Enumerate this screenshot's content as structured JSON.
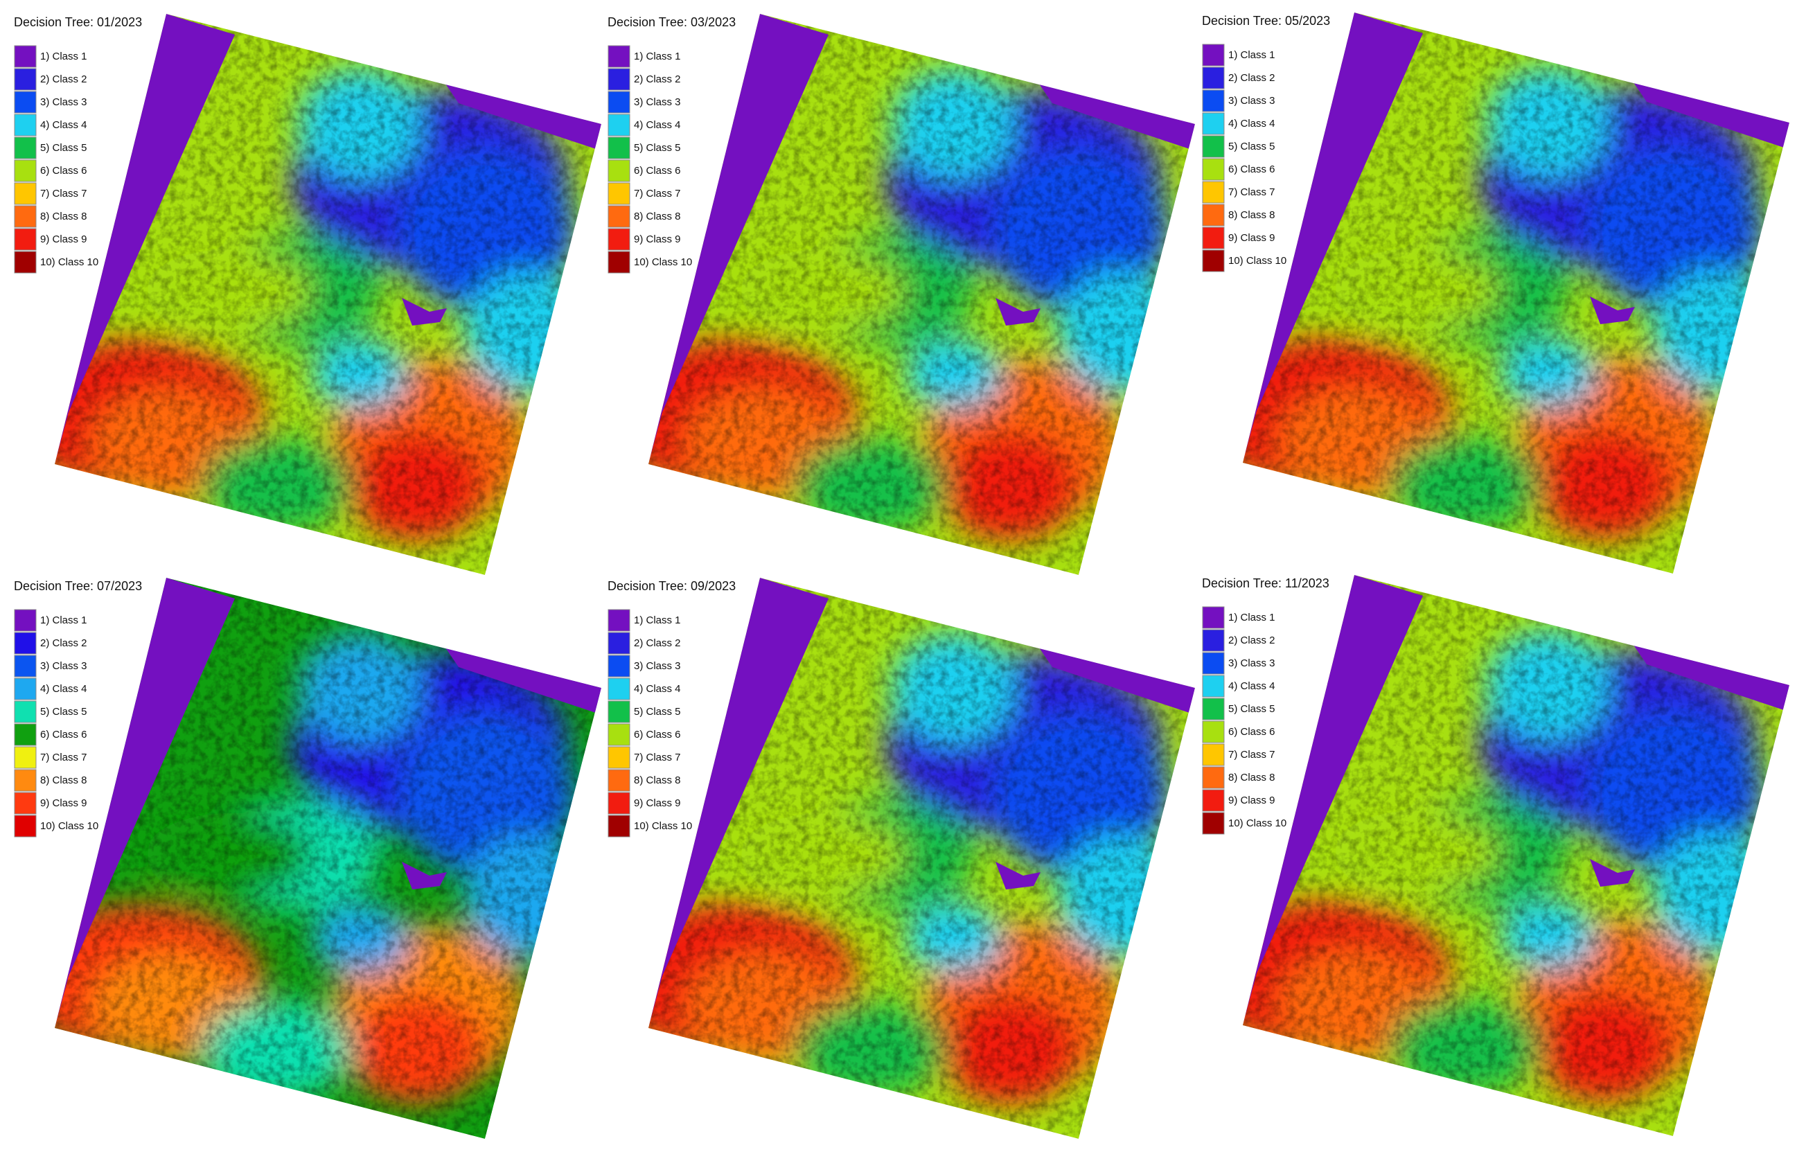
{
  "panels": [
    {
      "title": "Decision Tree: 01/2023",
      "legend": [
        {
          "label": "1) Class 1",
          "color": "#7410c0"
        },
        {
          "label": "2) Class 2",
          "color": "#2a1fe0"
        },
        {
          "label": "3) Class 3",
          "color": "#0b4cf2"
        },
        {
          "label": "4) Class 4",
          "color": "#1ed0f0"
        },
        {
          "label": "5) Class 5",
          "color": "#12c04a"
        },
        {
          "label": "6) Class 6",
          "color": "#a8e010"
        },
        {
          "label": "7) Class 7",
          "color": "#ffc600"
        },
        {
          "label": "8) Class 8",
          "color": "#ff6a10"
        },
        {
          "label": "9) Class 9",
          "color": "#f21c10"
        },
        {
          "label": "10) Class 10",
          "color": "#a00000"
        }
      ]
    },
    {
      "title": "Decision Tree: 03/2023",
      "legend": [
        {
          "label": "1) Class 1",
          "color": "#7410c0"
        },
        {
          "label": "2) Class 2",
          "color": "#2a1fe0"
        },
        {
          "label": "3) Class 3",
          "color": "#0b4cf2"
        },
        {
          "label": "4) Class 4",
          "color": "#1ed0f0"
        },
        {
          "label": "5) Class 5",
          "color": "#12c04a"
        },
        {
          "label": "6) Class 6",
          "color": "#a8e010"
        },
        {
          "label": "7) Class 7",
          "color": "#ffc600"
        },
        {
          "label": "8) Class 8",
          "color": "#ff6a10"
        },
        {
          "label": "9) Class 9",
          "color": "#f21c10"
        },
        {
          "label": "10) Class 10",
          "color": "#a00000"
        }
      ]
    },
    {
      "title": "Decision Tree: 05/2023",
      "legend": [
        {
          "label": "1) Class 1",
          "color": "#7410c0"
        },
        {
          "label": "2) Class 2",
          "color": "#2a1fe0"
        },
        {
          "label": "3) Class 3",
          "color": "#0b4cf2"
        },
        {
          "label": "4) Class 4",
          "color": "#1ed0f0"
        },
        {
          "label": "5) Class 5",
          "color": "#12c04a"
        },
        {
          "label": "6) Class 6",
          "color": "#a8e010"
        },
        {
          "label": "7) Class 7",
          "color": "#ffc600"
        },
        {
          "label": "8) Class 8",
          "color": "#ff6a10"
        },
        {
          "label": "9) Class 9",
          "color": "#f21c10"
        },
        {
          "label": "10) Class 10",
          "color": "#a00000"
        }
      ]
    },
    {
      "title": "Decision Tree: 07/2023",
      "legend": [
        {
          "label": "1) Class 1",
          "color": "#7410c0"
        },
        {
          "label": "2) Class 2",
          "color": "#2010e8"
        },
        {
          "label": "3) Class 3",
          "color": "#0b55f0"
        },
        {
          "label": "4) Class 4",
          "color": "#1ea8f0"
        },
        {
          "label": "5) Class 5",
          "color": "#10e0b0"
        },
        {
          "label": "6) Class 6",
          "color": "#10a010"
        },
        {
          "label": "7) Class 7",
          "color": "#f0f010"
        },
        {
          "label": "8) Class 8",
          "color": "#ff8a10"
        },
        {
          "label": "9) Class 9",
          "color": "#ff3a10"
        },
        {
          "label": "10) Class 10",
          "color": "#e00000"
        }
      ]
    },
    {
      "title": "Decision Tree: 09/2023",
      "legend": [
        {
          "label": "1) Class 1",
          "color": "#7410c0"
        },
        {
          "label": "2) Class 2",
          "color": "#2a1fe0"
        },
        {
          "label": "3) Class 3",
          "color": "#0b4cf2"
        },
        {
          "label": "4) Class 4",
          "color": "#1ed0f0"
        },
        {
          "label": "5) Class 5",
          "color": "#12c04a"
        },
        {
          "label": "6) Class 6",
          "color": "#a8e010"
        },
        {
          "label": "7) Class 7",
          "color": "#ffc600"
        },
        {
          "label": "8) Class 8",
          "color": "#ff6a10"
        },
        {
          "label": "9) Class 9",
          "color": "#f21c10"
        },
        {
          "label": "10) Class 10",
          "color": "#a00000"
        }
      ]
    },
    {
      "title": "Decision Tree: 11/2023",
      "legend": [
        {
          "label": "1) Class 1",
          "color": "#7410c0"
        },
        {
          "label": "2) Class 2",
          "color": "#2a1fe0"
        },
        {
          "label": "3) Class 3",
          "color": "#0b4cf2"
        },
        {
          "label": "4) Class 4",
          "color": "#1ed0f0"
        },
        {
          "label": "5) Class 5",
          "color": "#12c04a"
        },
        {
          "label": "6) Class 6",
          "color": "#a8e010"
        },
        {
          "label": "7) Class 7",
          "color": "#ffc600"
        },
        {
          "label": "8) Class 8",
          "color": "#ff6a10"
        },
        {
          "label": "9) Class 9",
          "color": "#f21c10"
        },
        {
          "label": "10) Class 10",
          "color": "#a00000"
        }
      ]
    }
  ]
}
